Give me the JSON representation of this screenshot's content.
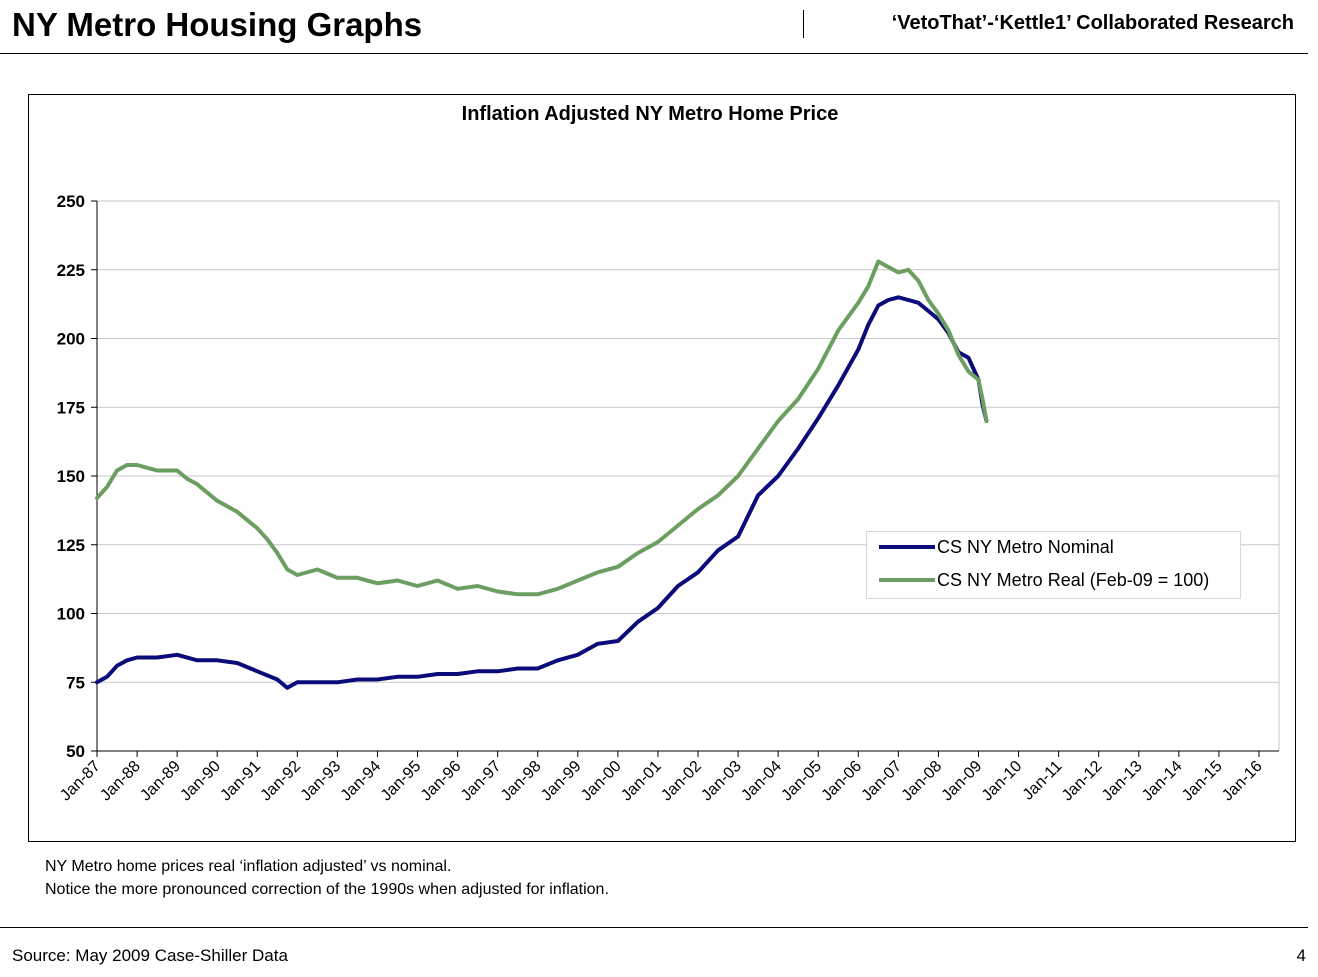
{
  "header": {
    "title": "NY Metro Housing Graphs",
    "subtitle": "‘VetoThat’-‘Kettle1’ Collaborated Research"
  },
  "notes": {
    "line1": "NY Metro home prices real ‘inflation adjusted’ vs nominal.",
    "line2": "Notice the more pronounced correction of the 1990s when adjusted for inflation."
  },
  "footer": {
    "source": "Source: May 2009 Case-Shiller Data",
    "page": "4"
  },
  "colors": {
    "nominal": "#0b0b7a",
    "real": "#6b9e60",
    "grid": "#c8c8c8"
  },
  "chart_data": {
    "type": "line",
    "title": "Inflation Adjusted NY Metro Home Price",
    "ylim": [
      50,
      250
    ],
    "yticks": [
      50,
      75,
      100,
      125,
      150,
      175,
      200,
      225,
      250
    ],
    "xlim": [
      1987.0,
      2016.5
    ],
    "xticks": [
      1987,
      1988,
      1989,
      1990,
      1991,
      1992,
      1993,
      1994,
      1995,
      1996,
      1997,
      1998,
      1999,
      2000,
      2001,
      2002,
      2003,
      2004,
      2005,
      2006,
      2007,
      2008,
      2009,
      2010,
      2011,
      2012,
      2013,
      2014,
      2015,
      2016
    ],
    "xtick_labels": [
      "Jan-87",
      "Jan-88",
      "Jan-89",
      "Jan-90",
      "Jan-91",
      "Jan-92",
      "Jan-93",
      "Jan-94",
      "Jan-95",
      "Jan-96",
      "Jan-97",
      "Jan-98",
      "Jan-99",
      "Jan-00",
      "Jan-01",
      "Jan-02",
      "Jan-03",
      "Jan-04",
      "Jan-05",
      "Jan-06",
      "Jan-07",
      "Jan-08",
      "Jan-09",
      "Jan-10",
      "Jan-11",
      "Jan-12",
      "Jan-13",
      "Jan-14",
      "Jan-15",
      "Jan-16"
    ],
    "grid": true,
    "legend_position": "right",
    "series": [
      {
        "name": "CS NY Metro Nominal",
        "color": "#0b0b7a",
        "x": [
          1987.0,
          1987.25,
          1987.5,
          1987.75,
          1988.0,
          1988.5,
          1989.0,
          1989.5,
          1990.0,
          1990.5,
          1991.0,
          1991.5,
          1991.75,
          1992.0,
          1992.5,
          1993.0,
          1993.5,
          1994.0,
          1994.5,
          1995.0,
          1995.5,
          1996.0,
          1996.5,
          1997.0,
          1997.5,
          1998.0,
          1998.5,
          1999.0,
          1999.5,
          2000.0,
          2000.5,
          2001.0,
          2001.5,
          2002.0,
          2002.5,
          2003.0,
          2003.5,
          2004.0,
          2004.5,
          2005.0,
          2005.5,
          2006.0,
          2006.25,
          2006.5,
          2006.75,
          2007.0,
          2007.25,
          2007.5,
          2007.75,
          2008.0,
          2008.25,
          2008.5,
          2008.75,
          2009.0,
          2009.1,
          2009.2
        ],
        "y": [
          75,
          77,
          81,
          83,
          84,
          84,
          85,
          83,
          83,
          82,
          79,
          76,
          73,
          75,
          75,
          75,
          76,
          76,
          77,
          77,
          78,
          78,
          79,
          79,
          80,
          80,
          83,
          85,
          89,
          90,
          97,
          102,
          110,
          115,
          123,
          128,
          143,
          150,
          160,
          171,
          183,
          196,
          205,
          212,
          214,
          215,
          214,
          213,
          210,
          207,
          202,
          195,
          193,
          185,
          176,
          170
        ]
      },
      {
        "name": "CS NY Metro Real (Feb-09 = 100)",
        "color": "#6b9e60",
        "x": [
          1987.0,
          1987.25,
          1987.5,
          1987.75,
          1988.0,
          1988.25,
          1988.5,
          1989.0,
          1989.25,
          1989.5,
          1990.0,
          1990.5,
          1991.0,
          1991.25,
          1991.5,
          1991.75,
          1992.0,
          1992.5,
          1993.0,
          1993.5,
          1994.0,
          1994.5,
          1995.0,
          1995.5,
          1996.0,
          1996.5,
          1997.0,
          1997.5,
          1998.0,
          1998.5,
          1999.0,
          1999.5,
          2000.0,
          2000.5,
          2001.0,
          2001.5,
          2002.0,
          2002.5,
          2003.0,
          2003.5,
          2004.0,
          2004.5,
          2005.0,
          2005.5,
          2006.0,
          2006.25,
          2006.5,
          2006.75,
          2007.0,
          2007.25,
          2007.5,
          2007.75,
          2008.0,
          2008.25,
          2008.5,
          2008.75,
          2009.0,
          2009.1,
          2009.2
        ],
        "y": [
          142,
          146,
          152,
          154,
          154,
          153,
          152,
          152,
          149,
          147,
          141,
          137,
          131,
          127,
          122,
          116,
          114,
          116,
          113,
          113,
          111,
          112,
          110,
          112,
          109,
          110,
          108,
          107,
          107,
          109,
          112,
          115,
          117,
          122,
          126,
          132,
          138,
          143,
          150,
          160,
          170,
          178,
          189,
          203,
          213,
          219,
          228,
          226,
          224,
          225,
          221,
          214,
          209,
          203,
          194,
          188,
          185,
          178,
          170
        ]
      }
    ]
  }
}
